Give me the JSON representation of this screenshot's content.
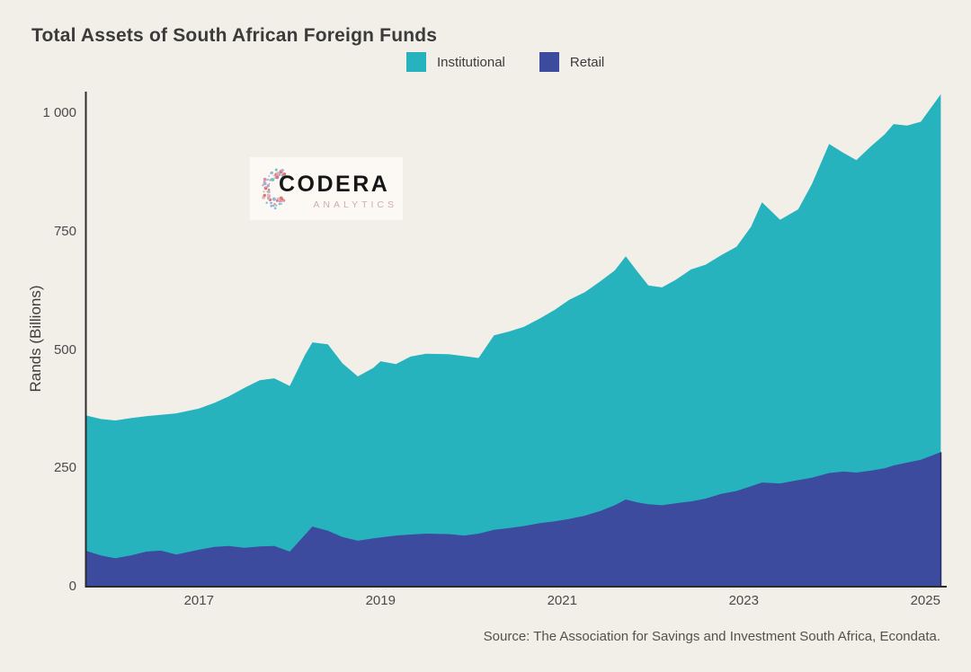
{
  "page": {
    "background": "#f2efe9"
  },
  "header": {
    "title": "Total Assets of South African Foreign Funds"
  },
  "legend": {
    "items": [
      {
        "label": "Institutional",
        "color": "#26b3be"
      },
      {
        "label": "Retail",
        "color": "#3c4b9d"
      }
    ]
  },
  "watermark": {
    "brand": "CODERA",
    "sub": "ANALYTICS",
    "dot_colors": [
      "#e48f9e",
      "#92b7d9",
      "#6ac3c9",
      "#d77a72",
      "#bba8d1",
      "#e8b4ba"
    ]
  },
  "source_note": "Source: The Association for Savings and Investment South Africa, Econdata.",
  "chart_data": {
    "type": "area",
    "stacked": true,
    "title": "Total Assets of South African Foreign Funds",
    "xlabel": "",
    "ylabel": "Rands (Billions)",
    "x_unit": "decimal_year",
    "grid": false,
    "legend_position": "top",
    "xlim": [
      2015.75,
      2025.25
    ],
    "ylim": [
      0,
      1050
    ],
    "x_ticks": [
      {
        "value": 2017,
        "label": "2017"
      },
      {
        "value": 2019,
        "label": "2019"
      },
      {
        "value": 2021,
        "label": "2021"
      },
      {
        "value": 2023,
        "label": "2023"
      },
      {
        "value": 2025,
        "label": "2025"
      }
    ],
    "y_ticks": [
      {
        "value": 0,
        "label": "0"
      },
      {
        "value": 250,
        "label": "250"
      },
      {
        "value": 500,
        "label": "500"
      },
      {
        "value": 750,
        "label": "750"
      },
      {
        "value": 1000,
        "label": "1 000"
      }
    ],
    "x": [
      2015.75,
      2015.92,
      2016.08,
      2016.25,
      2016.42,
      2016.58,
      2016.75,
      2017.0,
      2017.17,
      2017.33,
      2017.5,
      2017.67,
      2017.83,
      2018.0,
      2018.17,
      2018.25,
      2018.42,
      2018.58,
      2018.75,
      2018.92,
      2019.0,
      2019.17,
      2019.33,
      2019.5,
      2019.75,
      2019.92,
      2020.08,
      2020.25,
      2020.42,
      2020.58,
      2020.75,
      2020.92,
      2021.08,
      2021.25,
      2021.42,
      2021.58,
      2021.7,
      2021.83,
      2021.95,
      2022.1,
      2022.25,
      2022.42,
      2022.58,
      2022.75,
      2022.92,
      2023.08,
      2023.2,
      2023.4,
      2023.6,
      2023.75,
      2023.94,
      2024.1,
      2024.24,
      2024.4,
      2024.55,
      2024.65,
      2024.8,
      2024.95,
      2025.17
    ],
    "series": [
      {
        "name": "Retail",
        "color": "#3c4b9d",
        "values": [
          76,
          66,
          60,
          66,
          74,
          76,
          68,
          78,
          84,
          86,
          82,
          85,
          86,
          74,
          110,
          127,
          118,
          105,
          97,
          102,
          104,
          108,
          110,
          112,
          111,
          108,
          112,
          120,
          124,
          128,
          134,
          138,
          143,
          150,
          160,
          172,
          184,
          178,
          174,
          172,
          176,
          180,
          186,
          196,
          202,
          212,
          220,
          218,
          225,
          230,
          240,
          243,
          241,
          245,
          250,
          256,
          262,
          268,
          284
        ]
      },
      {
        "name": "Institutional",
        "color": "#26b3be",
        "values": [
          286,
          288,
          291,
          290,
          286,
          287,
          298,
          298,
          304,
          316,
          338,
          351,
          354,
          350,
          380,
          389,
          394,
          367,
          347,
          360,
          372,
          362,
          376,
          380,
          380,
          379,
          371,
          411,
          415,
          421,
          432,
          447,
          463,
          472,
          485,
          496,
          514,
          487,
          462,
          460,
          472,
          490,
          494,
          504,
          516,
          548,
          592,
          557,
          572,
          620,
          695,
          673,
          660,
          685,
          705,
          721,
          712,
          714,
          756
        ]
      }
    ]
  }
}
